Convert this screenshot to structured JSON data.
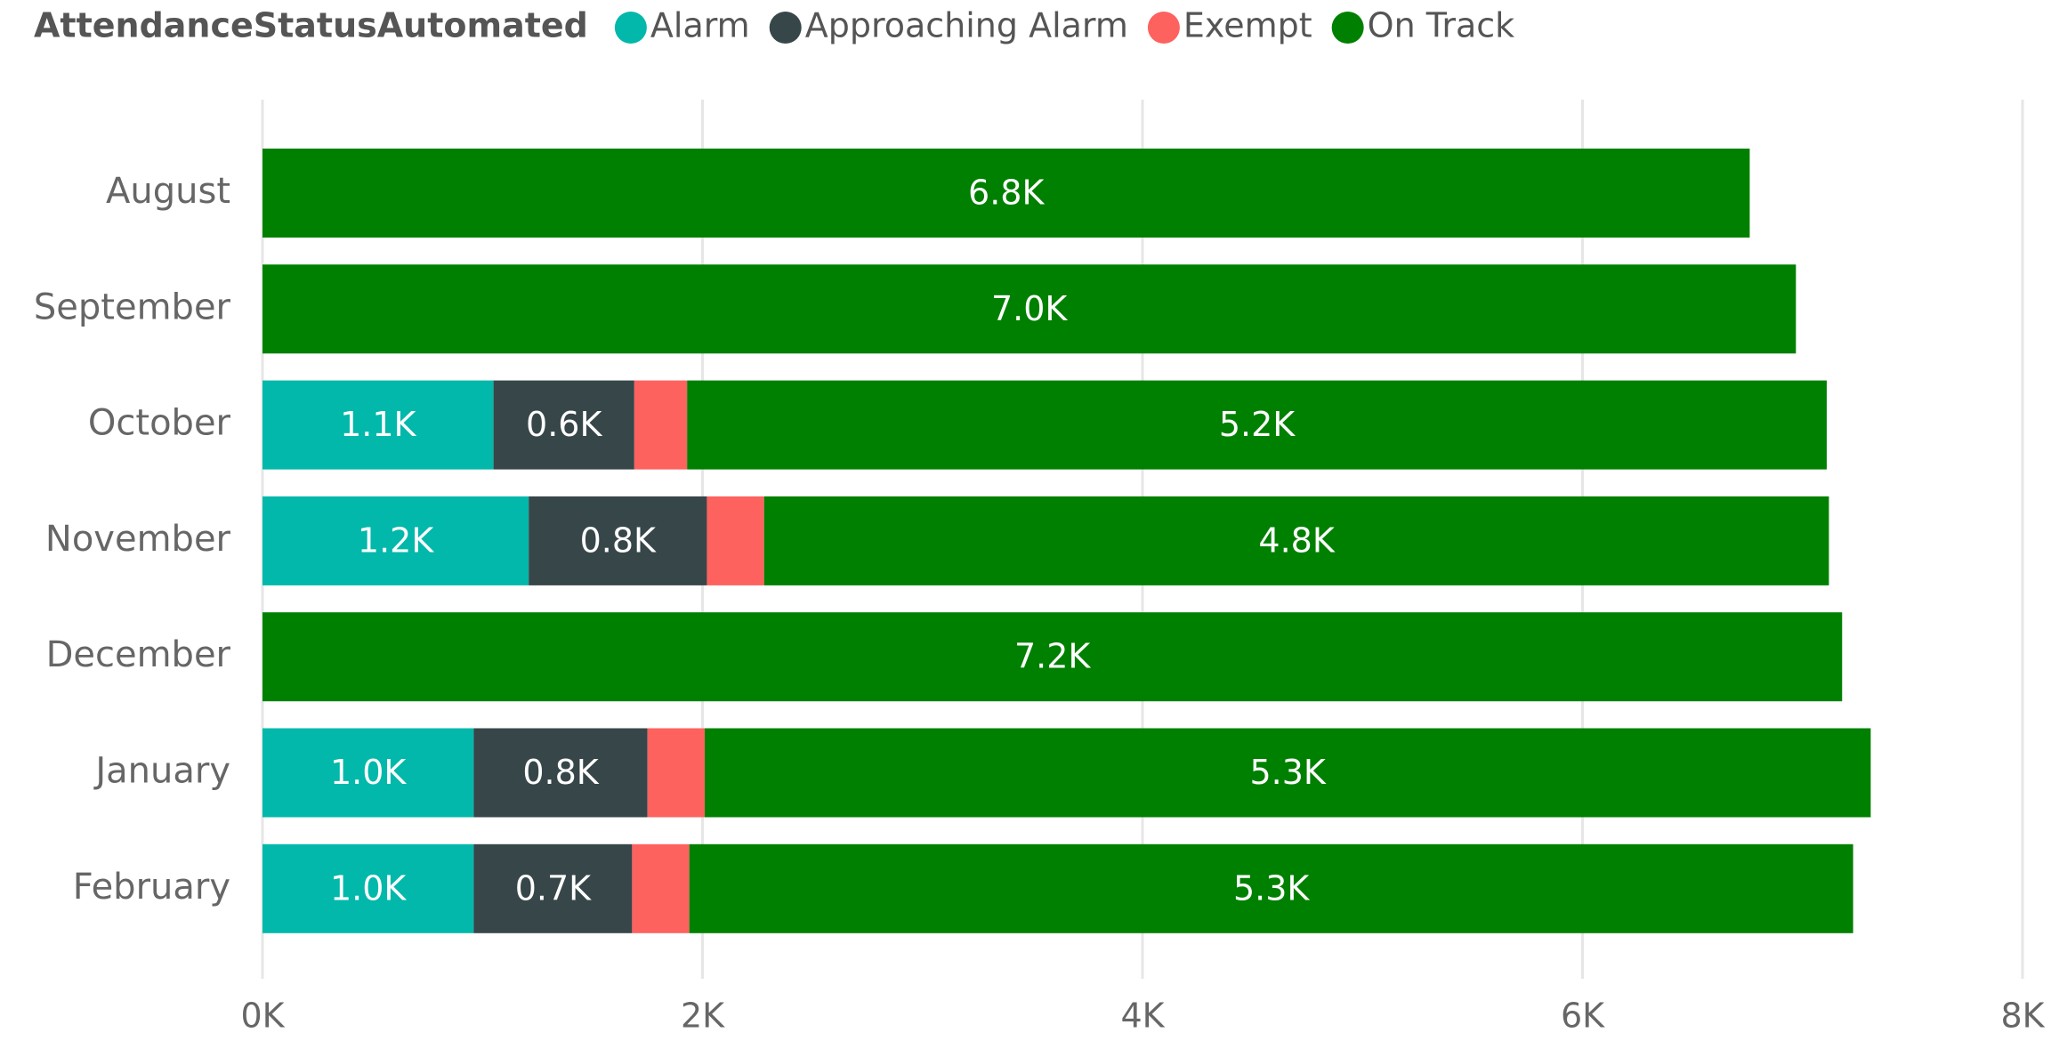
{
  "chart_data": {
    "type": "stacked_barh",
    "legend_title": "AttendanceStatusAutomated",
    "categories": [
      "August",
      "September",
      "October",
      "November",
      "December",
      "January",
      "February"
    ],
    "series": [
      {
        "name": "Alarm",
        "color": "#01b8aa",
        "values": [
          null,
          null,
          1050,
          1210,
          null,
          960,
          960
        ],
        "value_labels": [
          null,
          null,
          "1.1K",
          "1.2K",
          null,
          "1.0K",
          "1.0K"
        ]
      },
      {
        "name": "Approaching Alarm",
        "color": "#374649",
        "values": [
          null,
          null,
          640,
          810,
          null,
          790,
          720
        ],
        "value_labels": [
          null,
          null,
          "0.6K",
          "0.8K",
          null,
          "0.8K",
          "0.7K"
        ]
      },
      {
        "name": "Exempt",
        "color": "#fd625e",
        "values": [
          null,
          null,
          240,
          260,
          null,
          260,
          260
        ]
      },
      {
        "name": "On Track",
        "color": "#008000",
        "values": [
          6760,
          6970,
          5180,
          4840,
          7180,
          5300,
          5290
        ],
        "value_labels": [
          "6.8K",
          "7.0K",
          "5.2K",
          "4.8K",
          "7.2K",
          "5.3K",
          "5.3K"
        ]
      }
    ],
    "xlim": [
      0,
      8000
    ],
    "xticks": [
      {
        "value": 0,
        "label": "0K"
      },
      {
        "value": 2000,
        "label": "2K"
      },
      {
        "value": 4000,
        "label": "4K"
      },
      {
        "value": 6000,
        "label": "6K"
      },
      {
        "value": 8000,
        "label": "8K"
      }
    ],
    "grid": true,
    "legend": "top-left"
  }
}
